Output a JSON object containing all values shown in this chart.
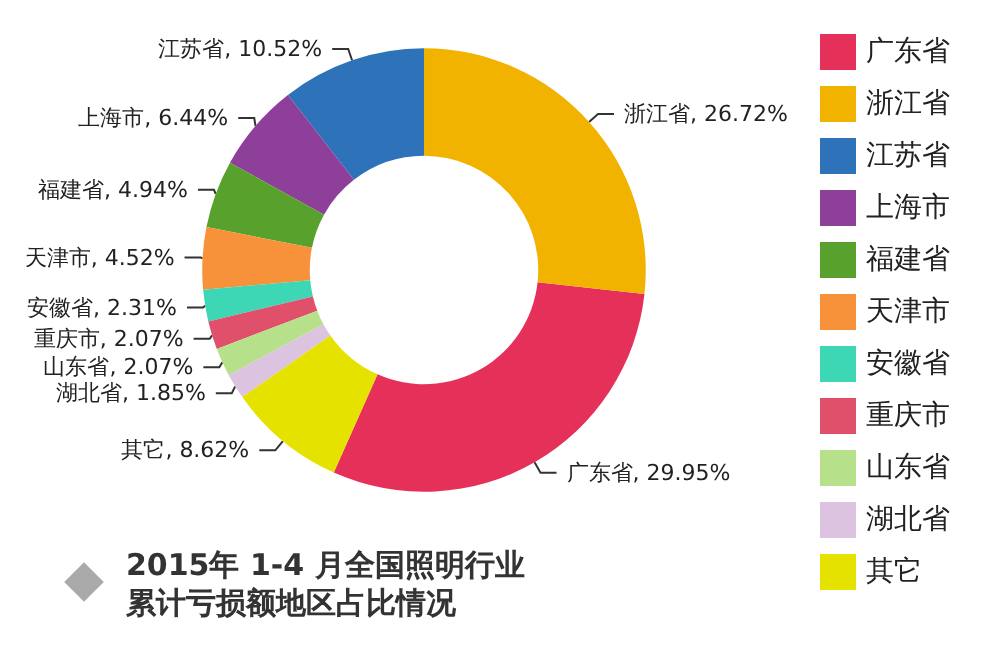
{
  "chart_data": {
    "type": "donut",
    "title": "2015年 1-4 月全国照明行业",
    "subtitle": "累计亏损额地区占比情况",
    "categories": [
      "广东省",
      "浙江省",
      "江苏省",
      "上海市",
      "福建省",
      "天津市",
      "安徽省",
      "重庆市",
      "山东省",
      "湖北省",
      "其它"
    ],
    "values": [
      29.95,
      26.72,
      10.52,
      6.44,
      4.94,
      4.52,
      2.31,
      2.07,
      2.07,
      1.85,
      8.62
    ],
    "value_labels": [
      "广东省, 29.95%",
      "浙江省, 26.72%",
      "江苏省, 10.52%",
      "上海市, 6.44%",
      "福建省, 4.94%",
      "天津市, 4.52%",
      "安徽省, 2.31%",
      "重庆市, 2.07%",
      "山东省, 2.07%",
      "湖北省, 1.85%",
      "其它, 8.62%"
    ],
    "colors": [
      "#e5305a",
      "#f2b200",
      "#2e73b9",
      "#8d3f99",
      "#58a12c",
      "#f7923a",
      "#3ed7b5",
      "#e0506b",
      "#b6e08a",
      "#dcc3df",
      "#e6e200"
    ],
    "legend": "right"
  }
}
